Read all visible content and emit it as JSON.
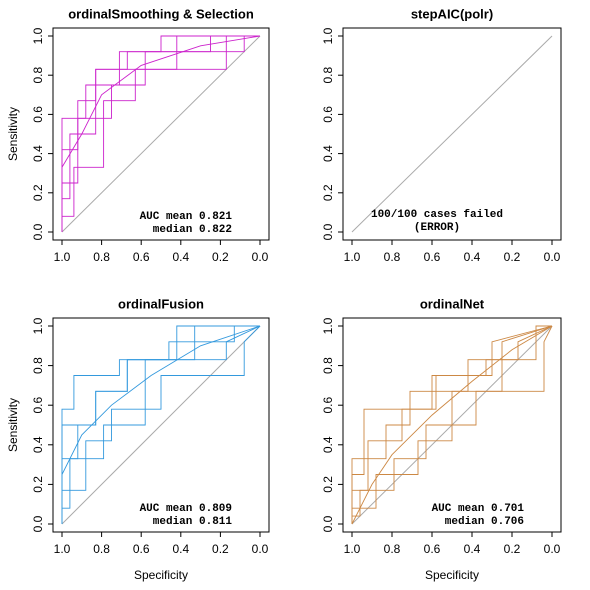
{
  "chart_data": [
    {
      "type": "line",
      "title": "ordinalSmoothing & Selection",
      "ylabel": "Sensitivity",
      "color": "#cc22cc",
      "xlim": [
        1,
        0
      ],
      "ylim": [
        0,
        1
      ],
      "xticks": [
        {
          "value": 1,
          "label": "1.0"
        },
        {
          "value": 0.8,
          "label": "0.8"
        },
        {
          "value": 0.6,
          "label": "0.6"
        },
        {
          "value": 0.4,
          "label": "0.4"
        },
        {
          "value": 0.2,
          "label": "0.2"
        },
        {
          "value": 0,
          "label": "0.0"
        }
      ],
      "yticks": [
        {
          "value": 0,
          "label": "0.0"
        },
        {
          "value": 0.2,
          "label": "0.2"
        },
        {
          "value": 0.4,
          "label": "0.4"
        },
        {
          "value": 0.6,
          "label": "0.6"
        },
        {
          "value": 0.8,
          "label": "0.8"
        },
        {
          "value": 1,
          "label": "1.0"
        }
      ],
      "series": [
        {
          "x": [
            1,
            1,
            0.92,
            0.92,
            0.83,
            0.83,
            0.67,
            0.67,
            0.25,
            0.25,
            0
          ],
          "values": [
            0,
            0.42,
            0.42,
            0.67,
            0.67,
            0.83,
            0.83,
            0.92,
            0.92,
            1,
            1
          ]
        },
        {
          "x": [
            1,
            1,
            0.92,
            0.92,
            0.75,
            0.75,
            0.58,
            0.58,
            0.08,
            0.08,
            0
          ],
          "values": [
            0,
            0.25,
            0.25,
            0.58,
            0.58,
            0.75,
            0.75,
            0.92,
            0.92,
            1,
            1
          ]
        },
        {
          "x": [
            1,
            1,
            0.96,
            0.96,
            0.83,
            0.83,
            0.42,
            0.42,
            0
          ],
          "values": [
            0,
            0.17,
            0.17,
            0.5,
            0.5,
            0.83,
            0.83,
            1,
            1
          ]
        },
        {
          "x": [
            1,
            1,
            0.88,
            0.88,
            0.71,
            0.71,
            0.5,
            0.5,
            0
          ],
          "values": [
            0,
            0.58,
            0.58,
            0.75,
            0.75,
            0.92,
            0.92,
            1,
            1
          ]
        },
        {
          "x": [
            1,
            1,
            0.9,
            0.8,
            0.6,
            0.3,
            0
          ],
          "values": [
            0,
            0.33,
            0.5,
            0.7,
            0.85,
            0.95,
            1
          ]
        },
        {
          "x": [
            1,
            1,
            0.94,
            0.94,
            0.79,
            0.79,
            0.63,
            0.63,
            0.17,
            0.17,
            0
          ],
          "values": [
            0,
            0.08,
            0.08,
            0.33,
            0.33,
            0.67,
            0.67,
            0.83,
            0.83,
            1,
            1
          ]
        }
      ],
      "annotations": [
        "AUC mean 0.821",
        "median 0.822"
      ],
      "annotation_color": "#000000"
    },
    {
      "type": "line",
      "title": "stepAIC(polr)",
      "color": "#e0405a",
      "xlim": [
        1,
        0
      ],
      "ylim": [
        0,
        1
      ],
      "xticks": [
        {
          "value": 1,
          "label": "1.0"
        },
        {
          "value": 0.8,
          "label": "0.8"
        },
        {
          "value": 0.6,
          "label": "0.6"
        },
        {
          "value": 0.4,
          "label": "0.4"
        },
        {
          "value": 0.2,
          "label": "0.2"
        },
        {
          "value": 0,
          "label": "0.0"
        }
      ],
      "yticks": [
        {
          "value": 0,
          "label": "0.0"
        },
        {
          "value": 0.2,
          "label": "0.2"
        },
        {
          "value": 0.4,
          "label": "0.4"
        },
        {
          "value": 0.6,
          "label": "0.6"
        },
        {
          "value": 0.8,
          "label": "0.8"
        },
        {
          "value": 1,
          "label": "1.0"
        }
      ],
      "series": [],
      "annotations": [
        "100/100 cases failed",
        "(ERROR)"
      ],
      "annotation_color": "#e0405a"
    },
    {
      "type": "line",
      "title": "ordinalFusion",
      "ylabel": "Sensitivity",
      "xlabel": "Specificity",
      "color": "#3399dd",
      "xlim": [
        1,
        0
      ],
      "ylim": [
        0,
        1
      ],
      "xticks": [
        {
          "value": 1,
          "label": "1.0"
        },
        {
          "value": 0.8,
          "label": "0.8"
        },
        {
          "value": 0.6,
          "label": "0.6"
        },
        {
          "value": 0.4,
          "label": "0.4"
        },
        {
          "value": 0.2,
          "label": "0.2"
        },
        {
          "value": 0,
          "label": "0.0"
        }
      ],
      "yticks": [
        {
          "value": 0,
          "label": "0.0"
        },
        {
          "value": 0.2,
          "label": "0.2"
        },
        {
          "value": 0.4,
          "label": "0.4"
        },
        {
          "value": 0.6,
          "label": "0.6"
        },
        {
          "value": 0.8,
          "label": "0.8"
        },
        {
          "value": 1,
          "label": "1.0"
        }
      ],
      "series": [
        {
          "x": [
            1,
            1,
            0.92,
            0.92,
            0.83,
            0.83,
            0.67,
            0.67,
            0.33,
            0.33,
            0
          ],
          "values": [
            0,
            0.33,
            0.33,
            0.5,
            0.5,
            0.67,
            0.67,
            0.83,
            0.83,
            1,
            1
          ]
        },
        {
          "x": [
            1,
            1,
            0.88,
            0.88,
            0.75,
            0.75,
            0.5,
            0.5,
            0.08,
            0.08,
            0
          ],
          "values": [
            0,
            0.17,
            0.17,
            0.42,
            0.42,
            0.58,
            0.58,
            0.75,
            0.75,
            0.92,
            1
          ]
        },
        {
          "x": [
            1,
            1,
            0.96,
            0.96,
            0.79,
            0.79,
            0.58,
            0.58,
            0.17,
            0.17,
            0
          ],
          "values": [
            0,
            0.08,
            0.08,
            0.33,
            0.33,
            0.5,
            0.5,
            0.83,
            0.83,
            0.92,
            1
          ]
        },
        {
          "x": [
            1,
            1,
            0.83,
            0.83,
            0.67,
            0.67,
            0.42,
            0.42,
            0
          ],
          "values": [
            0,
            0.5,
            0.5,
            0.67,
            0.67,
            0.83,
            0.83,
            1,
            1
          ]
        },
        {
          "x": [
            1,
            1,
            0.9,
            0.75,
            0.55,
            0.3,
            0
          ],
          "values": [
            0,
            0.25,
            0.45,
            0.6,
            0.75,
            0.9,
            1
          ]
        },
        {
          "x": [
            1,
            1,
            0.94,
            0.94,
            0.71,
            0.71,
            0.46,
            0.46,
            0.13,
            0.13,
            0
          ],
          "values": [
            0,
            0.58,
            0.58,
            0.75,
            0.75,
            0.83,
            0.83,
            0.92,
            0.92,
            1,
            1
          ]
        }
      ],
      "annotations": [
        "AUC mean 0.809",
        "median 0.811"
      ],
      "annotation_color": "#000000"
    },
    {
      "type": "line",
      "title": "ordinalNet",
      "xlabel": "Specificity",
      "color": "#cc8844",
      "xlim": [
        1,
        0
      ],
      "ylim": [
        0,
        1
      ],
      "xticks": [
        {
          "value": 1,
          "label": "1.0"
        },
        {
          "value": 0.8,
          "label": "0.8"
        },
        {
          "value": 0.6,
          "label": "0.6"
        },
        {
          "value": 0.4,
          "label": "0.4"
        },
        {
          "value": 0.2,
          "label": "0.2"
        },
        {
          "value": 0,
          "label": "0.0"
        }
      ],
      "yticks": [
        {
          "value": 0,
          "label": "0.0"
        },
        {
          "value": 0.2,
          "label": "0.2"
        },
        {
          "value": 0.4,
          "label": "0.4"
        },
        {
          "value": 0.6,
          "label": "0.6"
        },
        {
          "value": 0.8,
          "label": "0.8"
        },
        {
          "value": 1,
          "label": "1.0"
        }
      ],
      "series": [
        {
          "x": [
            1,
            1,
            0.92,
            0.92,
            0.75,
            0.75,
            0.58,
            0.58,
            0.33,
            0.33,
            0.08,
            0.08,
            0
          ],
          "values": [
            0,
            0.17,
            0.17,
            0.42,
            0.42,
            0.58,
            0.58,
            0.75,
            0.75,
            0.83,
            0.83,
            1,
            1
          ]
        },
        {
          "x": [
            1,
            1,
            0.88,
            0.88,
            0.67,
            0.67,
            0.5,
            0.5,
            0.25,
            0.25,
            0
          ],
          "values": [
            0,
            0.08,
            0.08,
            0.25,
            0.25,
            0.42,
            0.42,
            0.67,
            0.67,
            0.92,
            1
          ]
        },
        {
          "x": [
            1,
            1,
            0.83,
            0.83,
            0.71,
            0.71,
            0.42,
            0.42,
            0.17,
            0.17,
            0
          ],
          "values": [
            0,
            0.33,
            0.33,
            0.5,
            0.5,
            0.67,
            0.67,
            0.83,
            0.83,
            0.92,
            1
          ]
        },
        {
          "x": [
            1,
            1,
            0.96,
            0.96,
            0.79,
            0.79,
            0.63,
            0.63,
            0.38,
            0.38,
            0.04,
            0.04,
            0
          ],
          "values": [
            0,
            0.04,
            0.04,
            0.17,
            0.17,
            0.33,
            0.33,
            0.5,
            0.5,
            0.67,
            0.67,
            0.92,
            1
          ]
        },
        {
          "x": [
            1,
            0.9,
            0.8,
            0.6,
            0.4,
            0.2,
            0
          ],
          "values": [
            0,
            0.2,
            0.35,
            0.55,
            0.72,
            0.88,
            1
          ]
        },
        {
          "x": [
            1,
            1,
            0.94,
            0.94,
            0.6,
            0.6,
            0.3,
            0.3,
            0
          ],
          "values": [
            0,
            0.25,
            0.25,
            0.58,
            0.58,
            0.75,
            0.75,
            0.92,
            1
          ]
        }
      ],
      "annotations": [
        "AUC mean 0.701",
        "median 0.706"
      ],
      "annotation_color": "#000000"
    }
  ]
}
